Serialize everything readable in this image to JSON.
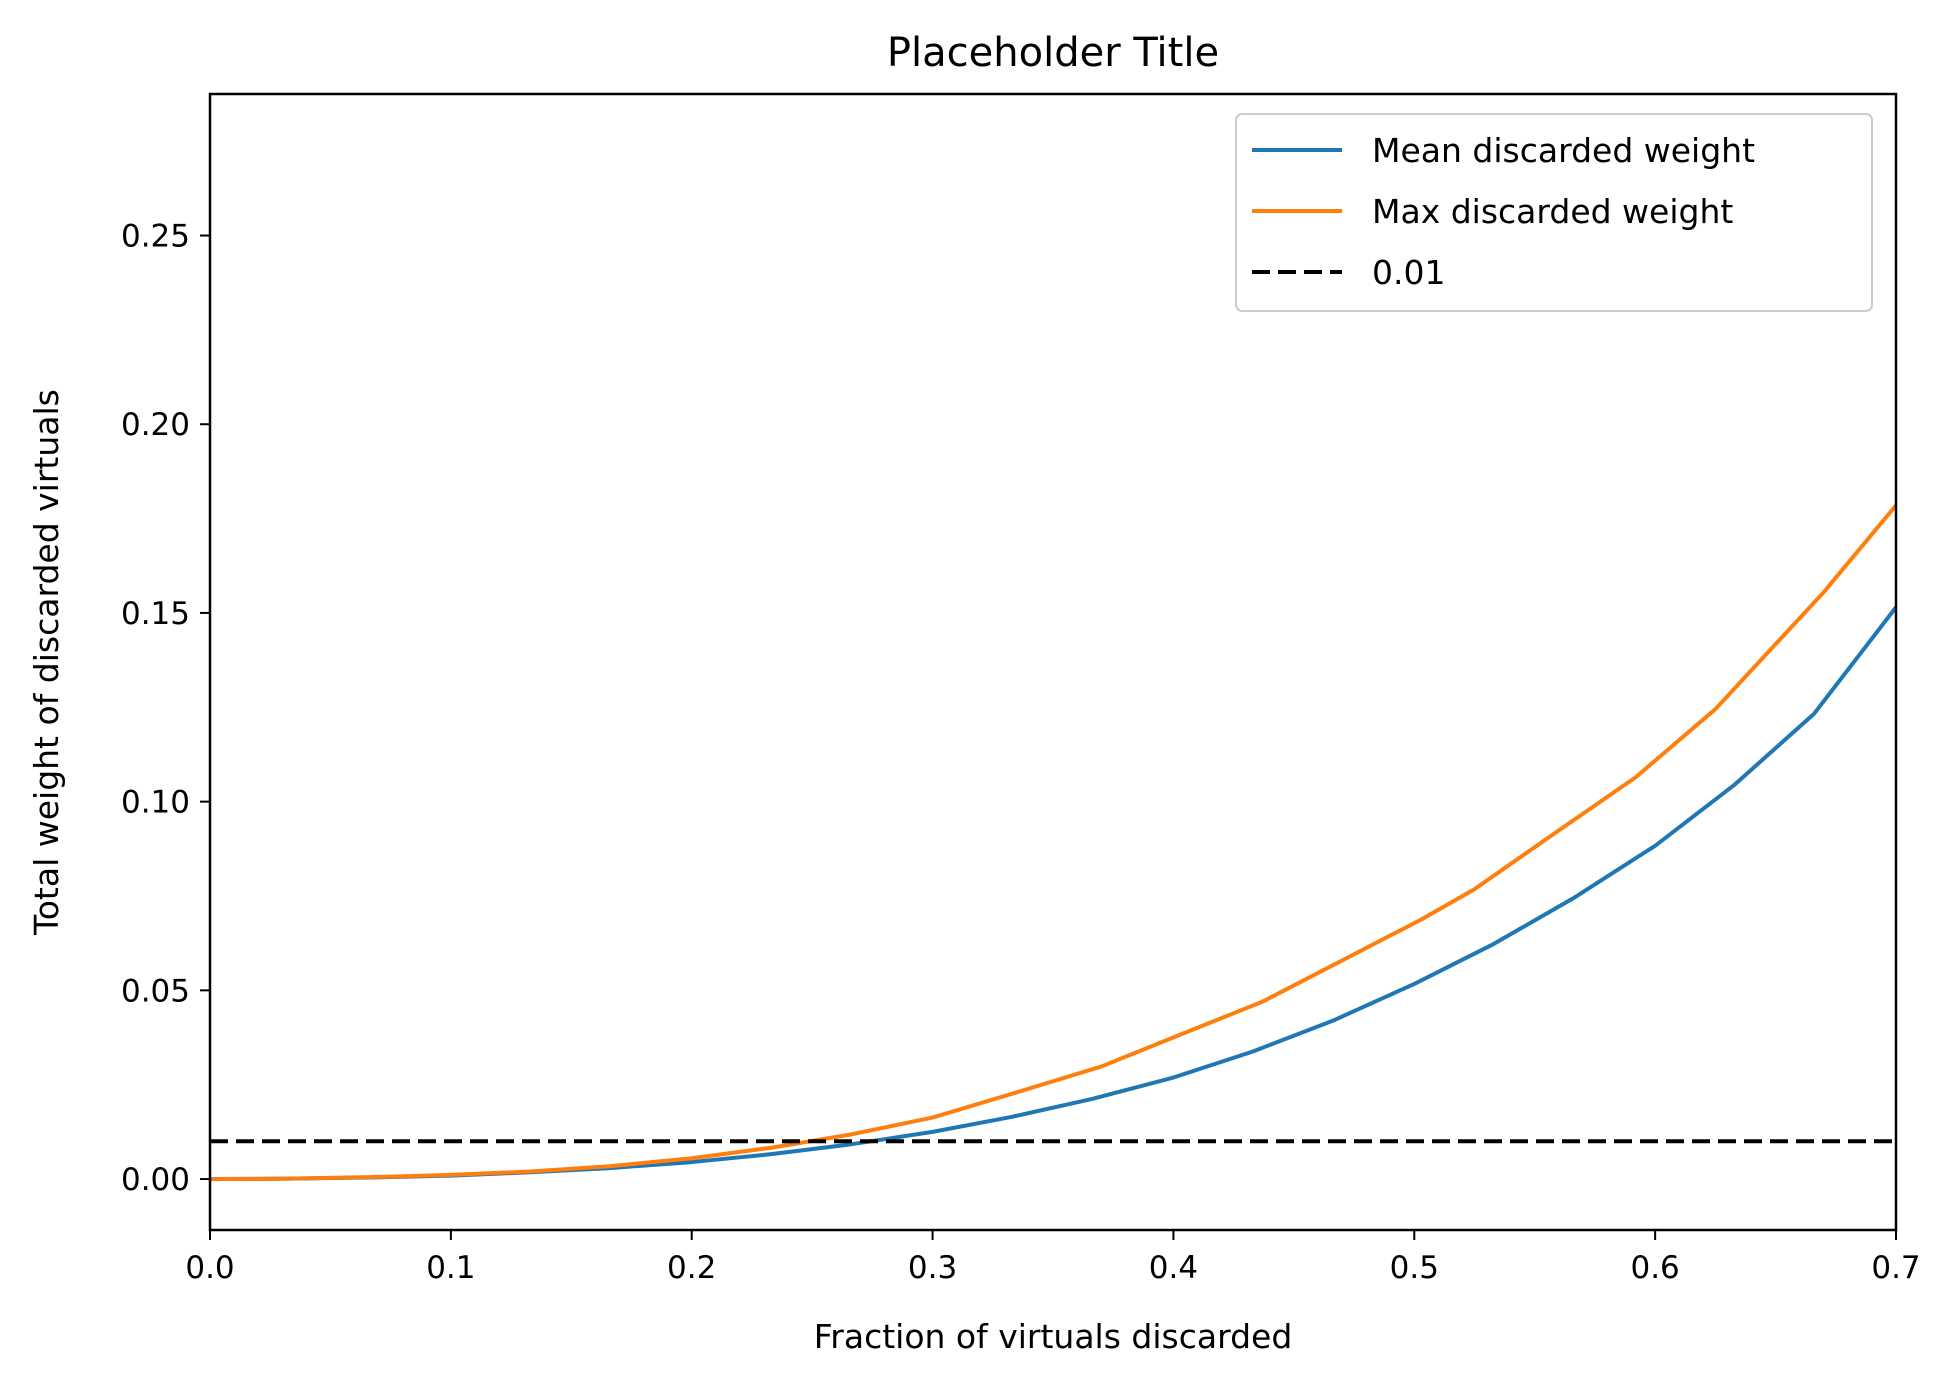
{
  "chart_data": {
    "type": "line",
    "title": "Placeholder Title",
    "xlabel": "Fraction of virtuals discarded",
    "ylabel": "Total weight of discarded virtuals",
    "xlim": [
      0.0,
      0.7
    ],
    "ylim": [
      -0.0135,
      0.2875
    ],
    "xticks": [
      0.0,
      0.1,
      0.2,
      0.3,
      0.4,
      0.5,
      0.6,
      0.7
    ],
    "xtick_labels": [
      "0.0",
      "0.1",
      "0.2",
      "0.3",
      "0.4",
      "0.5",
      "0.6",
      "0.7"
    ],
    "yticks": [
      0.0,
      0.05,
      0.1,
      0.15,
      0.2,
      0.25
    ],
    "ytick_labels": [
      "0.00",
      "0.05",
      "0.10",
      "0.15",
      "0.20",
      "0.25"
    ],
    "grid": false,
    "legend_position": "top-right",
    "series": [
      {
        "name": "Mean discarded weight",
        "color": "#1f77b4",
        "style": "solid",
        "x": [
          0.0,
          0.033,
          0.066,
          0.1,
          0.133,
          0.166,
          0.2,
          0.233,
          0.266,
          0.3,
          0.333,
          0.366,
          0.4,
          0.433,
          0.466,
          0.5,
          0.533,
          0.566,
          0.6,
          0.633,
          0.666,
          0.7
        ],
        "y": [
          0.0,
          0.0001,
          0.0004,
          0.0009,
          0.0018,
          0.0029,
          0.0045,
          0.0066,
          0.0092,
          0.0125,
          0.0165,
          0.0212,
          0.0269,
          0.0338,
          0.0419,
          0.0517,
          0.0623,
          0.0744,
          0.0883,
          0.1045,
          0.1233,
          0.1515
        ]
      },
      {
        "name": "Max discarded weight",
        "color": "#ff7f0e",
        "style": "solid",
        "x": [
          0.0,
          0.033,
          0.066,
          0.1,
          0.133,
          0.166,
          0.2,
          0.233,
          0.266,
          0.3,
          0.333,
          0.37,
          0.403,
          0.437,
          0.47,
          0.503,
          0.525,
          0.558,
          0.592,
          0.625,
          0.67,
          0.7
        ],
        "y": [
          0.0,
          0.0001,
          0.0005,
          0.0011,
          0.002,
          0.0034,
          0.0055,
          0.0083,
          0.0118,
          0.0163,
          0.0226,
          0.0298,
          0.0383,
          0.047,
          0.0579,
          0.0688,
          0.0768,
          0.0915,
          0.1065,
          0.1245,
          0.1555,
          0.1785
        ]
      },
      {
        "name": "0.01",
        "color": "#000000",
        "style": "dashed",
        "x": [
          0.0,
          0.7
        ],
        "y": [
          0.01,
          0.01
        ]
      }
    ]
  }
}
